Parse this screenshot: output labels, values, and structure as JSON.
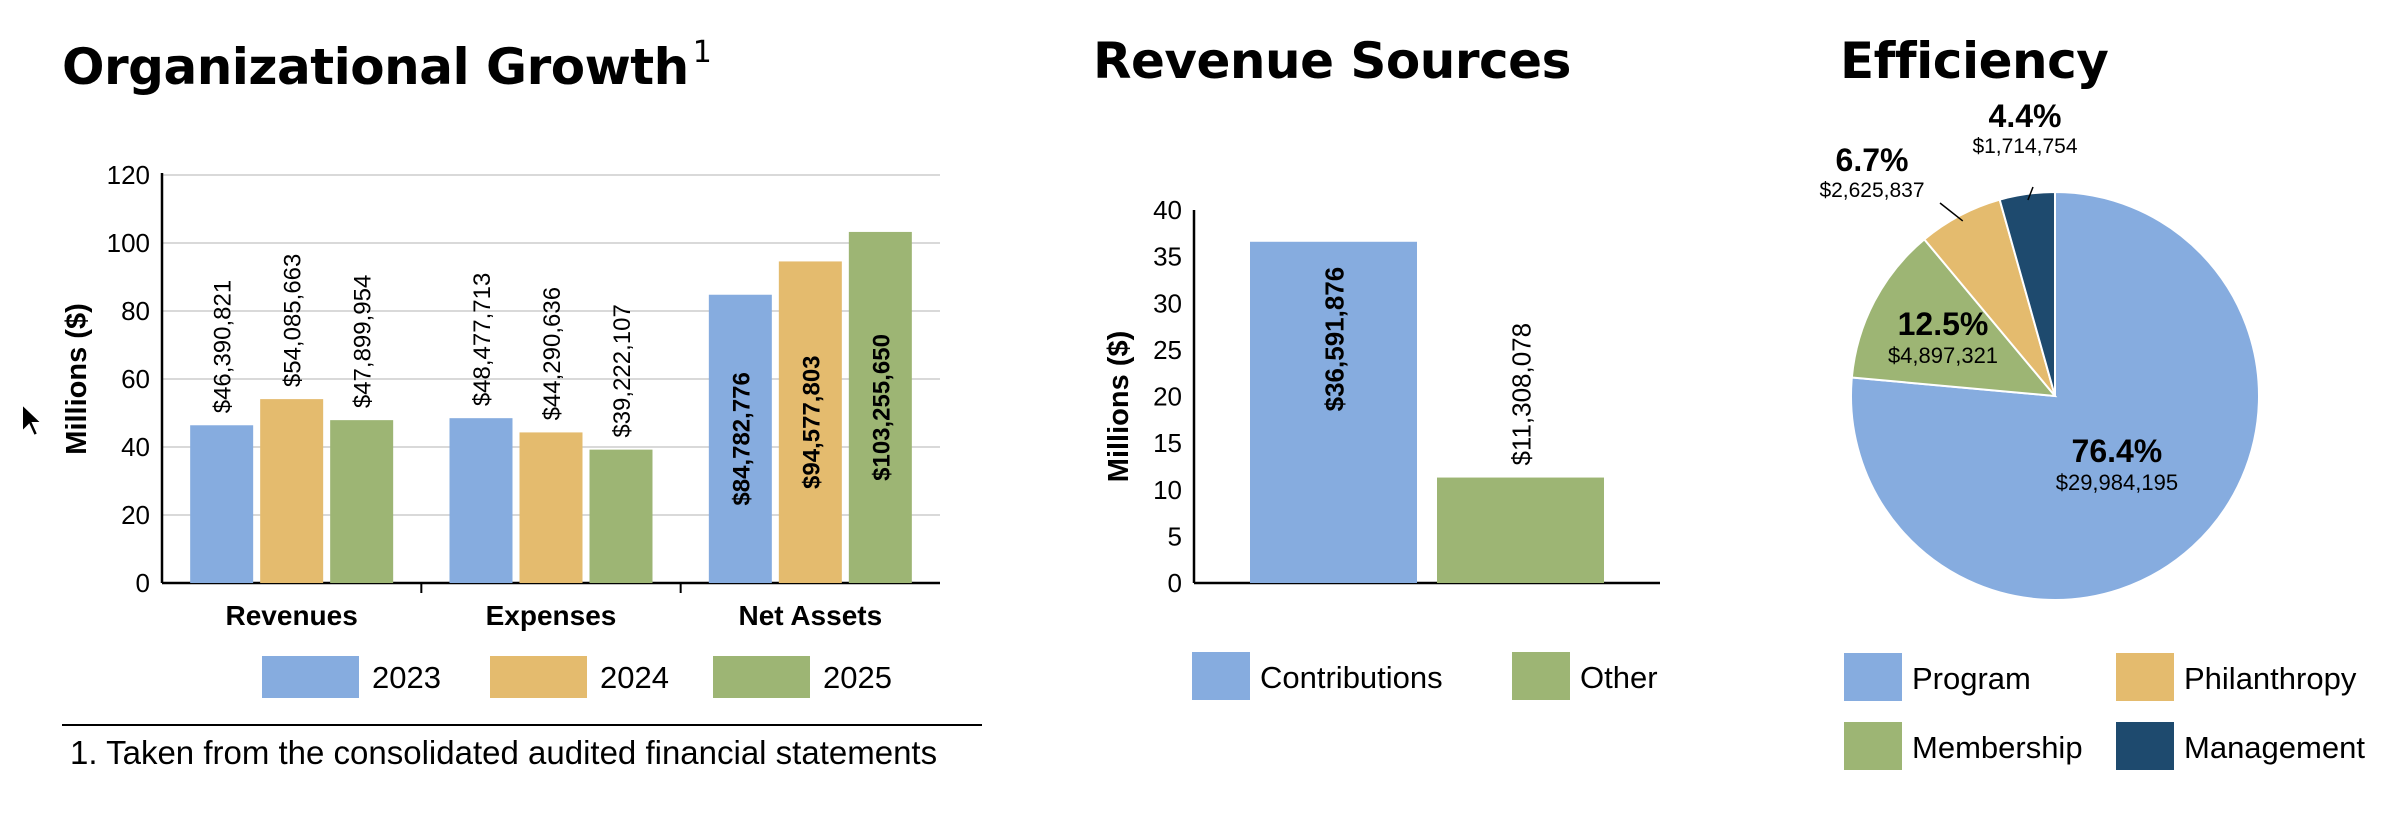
{
  "page": {
    "footnote_marker": "1",
    "footnote_text": "1. Taken from the consolidated audited financial statements"
  },
  "colors": {
    "blue": "#86acdf",
    "gold": "#e4bb6e",
    "green": "#9db574",
    "navy": "#1e4a6e",
    "grid": "#d9d9d9"
  },
  "chart_data": [
    {
      "type": "bar",
      "title": "Organizational Growth",
      "ylabel": "Millions ($)",
      "ylim": [
        0,
        120
      ],
      "yticks": [
        0,
        20,
        40,
        60,
        80,
        100,
        120
      ],
      "grid": true,
      "legend_position": "bottom",
      "categories": [
        "Revenues",
        "Expenses",
        "Net Assets"
      ],
      "series": [
        {
          "name": "2023",
          "color": "#86acdf",
          "values": [
            46.390821,
            48.477713,
            84.782776
          ],
          "labels": [
            "$46,390,821",
            "$48,477,713",
            "$84,782,776"
          ]
        },
        {
          "name": "2024",
          "color": "#e4bb6e",
          "values": [
            54.085663,
            44.290636,
            94.577803
          ],
          "labels": [
            "$54,085,663",
            "$44,290,636",
            "$94,577,803"
          ]
        },
        {
          "name": "2025",
          "color": "#9db574",
          "values": [
            47.899954,
            39.222107,
            103.25565
          ],
          "labels": [
            "$47,899,954",
            "$39,222,107",
            "$103,255,650"
          ]
        }
      ]
    },
    {
      "type": "bar",
      "title": "Revenue Sources",
      "ylabel": "Millions ($)",
      "ylim": [
        0,
        40
      ],
      "yticks": [
        0,
        5,
        10,
        15,
        20,
        25,
        30,
        35,
        40
      ],
      "grid": false,
      "legend_position": "bottom",
      "categories": [
        "Contributions",
        "Other"
      ],
      "values": [
        36.591876,
        11.308078
      ],
      "labels": [
        "$36,591,876",
        "$11,308,078"
      ],
      "colors": [
        "#86acdf",
        "#9db574"
      ]
    },
    {
      "type": "pie",
      "title": "Efficiency",
      "legend_position": "bottom",
      "slices": [
        {
          "name": "Program",
          "value": 29984195,
          "percent": "76.4%",
          "amount": "$29,984,195",
          "color": "#86acdf"
        },
        {
          "name": "Membership",
          "value": 4897321,
          "percent": "12.5%",
          "amount": "$4,897,321",
          "color": "#9db574"
        },
        {
          "name": "Philanthropy",
          "value": 2625837,
          "percent": "6.7%",
          "amount": "$2,625,837",
          "color": "#e4bb6e"
        },
        {
          "name": "Management",
          "value": 1714754,
          "percent": "4.4%",
          "amount": "$1,714,754",
          "color": "#1e4a6e"
        }
      ],
      "legend_order": [
        "Program",
        "Philanthropy",
        "Membership",
        "Management"
      ]
    }
  ]
}
